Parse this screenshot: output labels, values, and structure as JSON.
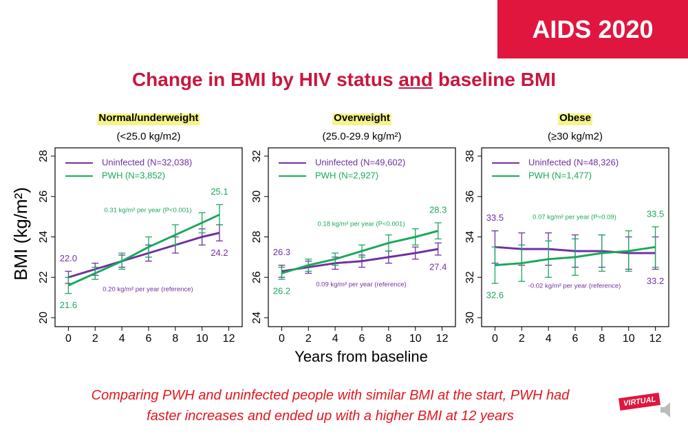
{
  "header": {
    "badge": "AIDS 2020",
    "title_start": "Change in BMI by HIV status",
    "title_emphasis": "and",
    "title_end": "baseline BMI"
  },
  "axis_labels": {
    "y": "BMI (kg/m²)",
    "x": "Years from baseline"
  },
  "footer": {
    "lines": [
      "Comparing PWH and uninfected people with similar BMI at the start, PWH had",
      "faster increases and ended up with a higher BMI at 12 years"
    ],
    "logo": "VIRTUAL"
  },
  "chart_data": [
    {
      "type": "line",
      "title": "Normal/underweight",
      "subtitle": "(<25.0 kg/m2)",
      "x": [
        0,
        2,
        4,
        6,
        8,
        10,
        11.3
      ],
      "xlim": [
        -1,
        13
      ],
      "xticks": [
        0,
        2,
        4,
        6,
        8,
        10,
        12
      ],
      "ylim": [
        20,
        28
      ],
      "yticks": [
        20,
        22,
        24,
        26,
        28
      ],
      "legend": "upper left",
      "series": [
        {
          "name": "Uninfected (N=32,038)",
          "color": "#7030a0",
          "values": [
            22.0,
            22.4,
            22.8,
            23.2,
            23.6,
            24.0,
            24.2
          ],
          "errors": [
            0.3,
            0.3,
            0.3,
            0.4,
            0.4,
            0.4,
            0.4
          ],
          "value_labels": [
            "22.0",
            null,
            null,
            null,
            null,
            null,
            "24.2"
          ],
          "annotation": "0.20 kg/m² per year (reference)"
        },
        {
          "name": "PWH (N=3,852)",
          "color": "#1aa85a",
          "values": [
            21.6,
            22.2,
            22.8,
            23.5,
            24.1,
            24.7,
            25.1
          ],
          "errors": [
            0.4,
            0.3,
            0.4,
            0.5,
            0.5,
            0.5,
            0.5
          ],
          "value_labels": [
            "21.6",
            null,
            null,
            null,
            null,
            null,
            "25.1"
          ],
          "annotation": "0.31 kg/m² per year (P<0.001)"
        }
      ]
    },
    {
      "type": "line",
      "title": "Overweight",
      "subtitle": "(25.0-29.9 kg/m²)",
      "x": [
        0,
        2,
        4,
        6,
        8,
        10,
        11.7
      ],
      "xlim": [
        -1,
        13
      ],
      "xticks": [
        0,
        2,
        4,
        6,
        8,
        10,
        12
      ],
      "ylim": [
        24,
        32
      ],
      "yticks": [
        24,
        26,
        28,
        30,
        32
      ],
      "legend": "upper left",
      "series": [
        {
          "name": "Uninfected (N=49,602)",
          "color": "#7030a0",
          "values": [
            26.3,
            26.5,
            26.7,
            26.8,
            27.0,
            27.2,
            27.4
          ],
          "errors": [
            0.3,
            0.3,
            0.3,
            0.3,
            0.3,
            0.3,
            0.3
          ],
          "value_labels": [
            "26.3",
            null,
            null,
            null,
            null,
            null,
            "27.4"
          ],
          "annotation": "0.09 kg/m² per year (reference)"
        },
        {
          "name": "PWH (N=2,927)",
          "color": "#1aa85a",
          "values": [
            26.2,
            26.6,
            26.9,
            27.3,
            27.7,
            28.0,
            28.3
          ],
          "errors": [
            0.3,
            0.3,
            0.3,
            0.3,
            0.4,
            0.4,
            0.4
          ],
          "value_labels": [
            "26.2",
            null,
            null,
            null,
            null,
            null,
            "28.3"
          ],
          "annotation": "0.18 kg/m² per year (P<0.001)"
        }
      ]
    },
    {
      "type": "line",
      "title": "Obese",
      "subtitle": "(≥30 kg/m2)",
      "x": [
        0,
        2,
        4,
        6,
        8,
        10,
        12
      ],
      "xlim": [
        -1,
        13
      ],
      "xticks": [
        0,
        2,
        4,
        6,
        8,
        10,
        12
      ],
      "ylim": [
        30,
        38
      ],
      "yticks": [
        30,
        32,
        34,
        36,
        38
      ],
      "legend": "upper left",
      "series": [
        {
          "name": "Uninfected (N=48,326)",
          "color": "#7030a0",
          "values": [
            33.5,
            33.4,
            33.4,
            33.3,
            33.3,
            33.2,
            33.2
          ],
          "errors": [
            0.8,
            0.8,
            0.8,
            0.8,
            0.8,
            0.8,
            0.8
          ],
          "value_labels": [
            "33.5",
            null,
            null,
            null,
            null,
            null,
            "33.2"
          ],
          "annotation": "-0.02 kg/m² per year (reference)"
        },
        {
          "name": "PWH (N=1,477)",
          "color": "#1aa85a",
          "values": [
            32.6,
            32.7,
            32.9,
            33.0,
            33.2,
            33.3,
            33.5
          ],
          "errors": [
            0.9,
            0.9,
            0.9,
            0.9,
            0.9,
            1.0,
            1.0
          ],
          "value_labels": [
            "32.6",
            null,
            null,
            null,
            null,
            null,
            "33.5"
          ],
          "annotation": "0.07 kg/m² per year (P=0.09)"
        }
      ]
    }
  ]
}
